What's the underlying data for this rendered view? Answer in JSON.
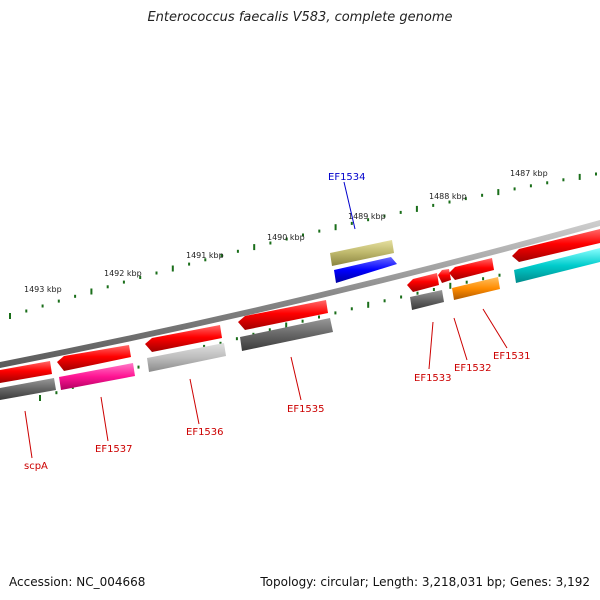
{
  "title": "Enterococcus faecalis V583, complete genome",
  "accession": "Accession: NC_004668",
  "topology": "Topology: circular; Length: 3,218,031 bp; Genes: 3,192",
  "scale_labels": [
    "1493 kbp",
    "1492 kbp",
    "1491 kbp",
    "1490 kbp",
    "1489 kbp",
    "1488 kbp",
    "1487 kbp"
  ],
  "gene_labels": {
    "scpA": "scpA",
    "EF1537": "EF1537",
    "EF1536": "EF1536",
    "EF1535": "EF1535",
    "EF1534": "EF1534",
    "EF1533": "EF1533",
    "EF1532": "EF1532",
    "EF1531": "EF1531"
  },
  "colors": {
    "label_red": "#cc0000",
    "label_blue": "#0000cc",
    "scale_green": "#1a6e1a",
    "backbone": "#888888"
  }
}
